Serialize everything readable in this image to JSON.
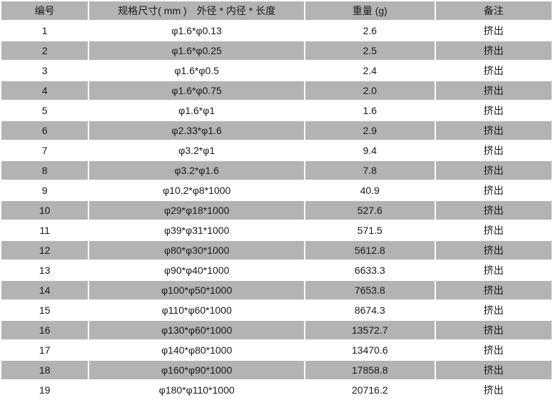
{
  "table": {
    "columns": [
      "编号",
      "规格尺寸( mm )　外径 * 内径 * 长度",
      "重量 (g)",
      "备注"
    ],
    "colors": {
      "row_gray": "#b3b3b3",
      "row_white": "#ffffff",
      "text": "#1a1a1a"
    },
    "rows": [
      {
        "id": "1",
        "spec": "φ1.6*φ0.13",
        "weight": "2.6",
        "note": "挤出"
      },
      {
        "id": "2",
        "spec": "φ1.6*φ0.25",
        "weight": "2.5",
        "note": "挤出"
      },
      {
        "id": "3",
        "spec": "φ1.6*φ0.5",
        "weight": "2.4",
        "note": "挤出"
      },
      {
        "id": "4",
        "spec": "φ1.6*φ0.75",
        "weight": "2.0",
        "note": "挤出"
      },
      {
        "id": "5",
        "spec": "φ1.6*φ1",
        "weight": "1.6",
        "note": "挤出"
      },
      {
        "id": "6",
        "spec": "φ2.33*φ1.6",
        "weight": "2.9",
        "note": "挤出"
      },
      {
        "id": "7",
        "spec": "φ3.2*φ1",
        "weight": "9.4",
        "note": "挤出"
      },
      {
        "id": "8",
        "spec": "φ3.2*φ1.6",
        "weight": "7.8",
        "note": "挤出"
      },
      {
        "id": "9",
        "spec": "φ10.2*φ8*1000",
        "weight": "40.9",
        "note": "挤出"
      },
      {
        "id": "10",
        "spec": "φ29*φ18*1000",
        "weight": "527.6",
        "note": "挤出"
      },
      {
        "id": "11",
        "spec": "φ39*φ31*1000",
        "weight": "571.5",
        "note": "挤出"
      },
      {
        "id": "12",
        "spec": "φ80*φ30*1000",
        "weight": "5612.8",
        "note": "挤出"
      },
      {
        "id": "13",
        "spec": "φ90*φ40*1000",
        "weight": "6633.3",
        "note": "挤出"
      },
      {
        "id": "14",
        "spec": "φ100*φ50*1000",
        "weight": "7653.8",
        "note": "挤出"
      },
      {
        "id": "15",
        "spec": "φ110*φ60*1000",
        "weight": "8674.3",
        "note": "挤出"
      },
      {
        "id": "16",
        "spec": "φ130*φ60*1000",
        "weight": "13572.7",
        "note": "挤出"
      },
      {
        "id": "17",
        "spec": "φ140*φ80*1000",
        "weight": "13470.6",
        "note": "挤出"
      },
      {
        "id": "18",
        "spec": "φ160*φ90*1000",
        "weight": "17858.8",
        "note": "挤出"
      },
      {
        "id": "19",
        "spec": "φ180*φ110*1000",
        "weight": "20716.2",
        "note": "挤出"
      }
    ]
  }
}
